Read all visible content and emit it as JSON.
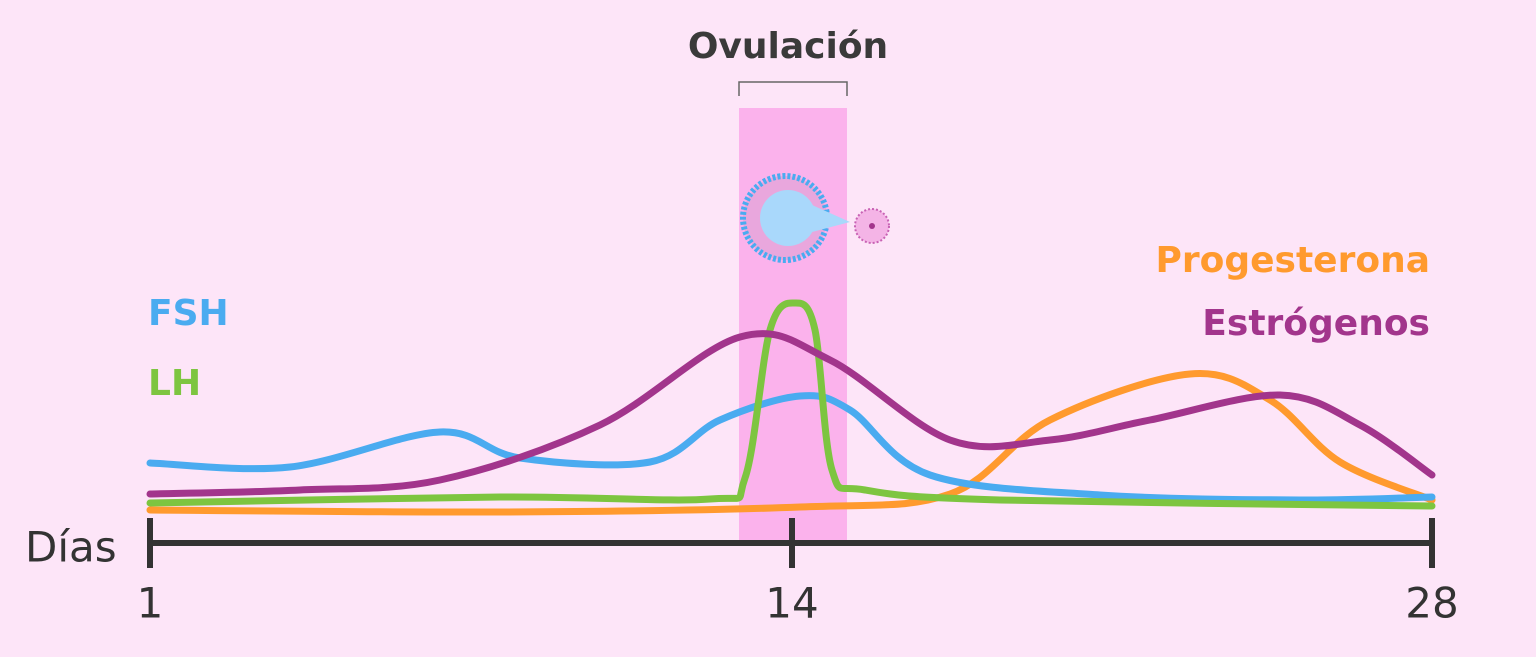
{
  "title": "Ovulación",
  "axis": {
    "label": "Días",
    "ticks": [
      "1",
      "14",
      "28"
    ]
  },
  "legend": {
    "left": [
      "FSH",
      "LH"
    ],
    "right": [
      "Progesterona",
      "Estrógenos"
    ]
  }
}
